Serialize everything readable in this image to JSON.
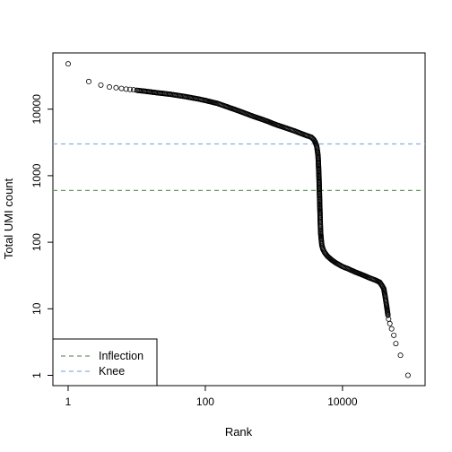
{
  "chart_data": {
    "type": "scatter",
    "title": "",
    "xlabel": "Rank",
    "ylabel": "Total UMI count",
    "x_scale": "log10",
    "y_scale": "log10",
    "xlim": [
      0.6,
      160000
    ],
    "ylim": [
      0.7,
      70000
    ],
    "x_ticks": [
      {
        "value": 1,
        "label": "1"
      },
      {
        "value": 100,
        "label": "100"
      },
      {
        "value": 10000,
        "label": "10000"
      }
    ],
    "y_ticks": [
      {
        "value": 1,
        "label": "1"
      },
      {
        "value": 10,
        "label": "10"
      },
      {
        "value": 100,
        "label": "100"
      },
      {
        "value": 1000,
        "label": "1000"
      },
      {
        "value": 10000,
        "label": "10000"
      }
    ],
    "grid": false,
    "marker": "open-circle",
    "curve_points": [
      [
        1,
        48000
      ],
      [
        2,
        26000
      ],
      [
        3,
        23000
      ],
      [
        4,
        21500
      ],
      [
        5,
        21000
      ],
      [
        6,
        20500
      ],
      [
        7,
        20000
      ],
      [
        8,
        19800
      ],
      [
        9,
        19500
      ],
      [
        10,
        19200
      ],
      [
        12,
        18800
      ],
      [
        15,
        18300
      ],
      [
        20,
        17600
      ],
      [
        30,
        16800
      ],
      [
        50,
        15500
      ],
      [
        80,
        14200
      ],
      [
        100,
        13500
      ],
      [
        150,
        12200
      ],
      [
        200,
        11000
      ],
      [
        300,
        9500
      ],
      [
        500,
        7800
      ],
      [
        800,
        6600
      ],
      [
        1000,
        6000
      ],
      [
        1500,
        5200
      ],
      [
        2000,
        4700
      ],
      [
        3000,
        4000
      ],
      [
        3500,
        3800
      ],
      [
        3800,
        3500
      ],
      [
        4000,
        3200
      ],
      [
        4200,
        2800
      ],
      [
        4300,
        2400
      ],
      [
        4400,
        2000
      ],
      [
        4450,
        1600
      ],
      [
        4500,
        1200
      ],
      [
        4550,
        900
      ],
      [
        4600,
        600
      ],
      [
        4650,
        400
      ],
      [
        4700,
        280
      ],
      [
        4750,
        190
      ],
      [
        4800,
        140
      ],
      [
        4900,
        110
      ],
      [
        5000,
        90
      ],
      [
        5200,
        78
      ],
      [
        5500,
        70
      ],
      [
        6000,
        62
      ],
      [
        7000,
        54
      ],
      [
        8000,
        49
      ],
      [
        10000,
        43
      ],
      [
        12000,
        40
      ],
      [
        15000,
        36
      ],
      [
        20000,
        32
      ],
      [
        25000,
        29
      ],
      [
        30000,
        27
      ],
      [
        35000,
        25
      ],
      [
        38000,
        22
      ],
      [
        40000,
        20
      ],
      [
        42000,
        15
      ],
      [
        44000,
        11
      ],
      [
        46000,
        8
      ],
      [
        47000,
        7
      ],
      [
        49000,
        6
      ],
      [
        52000,
        5
      ],
      [
        56000,
        4
      ],
      [
        60000,
        3
      ],
      [
        70000,
        2
      ],
      [
        90000,
        1
      ]
    ],
    "lines": [
      {
        "name": "Inflection",
        "y": 600,
        "color": "#6a9a6a",
        "style": "dashed"
      },
      {
        "name": "Knee",
        "y": 3000,
        "color": "#8ab0e0",
        "style": "dashed"
      }
    ],
    "legend": {
      "position": "bottom-left",
      "entries": [
        {
          "label": "Inflection",
          "color": "#6a9a6a"
        },
        {
          "label": "Knee",
          "color": "#8ab0e0"
        }
      ]
    }
  }
}
